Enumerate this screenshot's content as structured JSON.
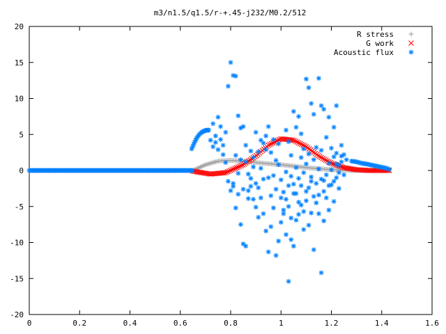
{
  "chart_data": {
    "type": "scatter",
    "title": "m3/n1.5/q1.5/r-+.45-j232/M0.2/512",
    "xlabel": "",
    "ylabel": "",
    "xlim": [
      0,
      1.6
    ],
    "ylim": [
      -20,
      20
    ],
    "x_ticks": [
      "0",
      "0.2",
      "0.4",
      "0.6",
      "0.8",
      "1",
      "1.2",
      "1.4",
      "1.6"
    ],
    "y_ticks": [
      "20",
      "15",
      "10",
      "5",
      "0",
      "-5",
      "-10",
      "-15",
      "-20"
    ],
    "grid": false,
    "legend_position": "top-right",
    "series": [
      {
        "name": "R stress",
        "marker": "plus",
        "color": "#a0a0a0",
        "curve": {
          "x": [
            0.65,
            0.7,
            0.75,
            0.8,
            0.85,
            0.9,
            1.0,
            1.1,
            1.2,
            1.3,
            1.35,
            1.43
          ],
          "y": [
            0.0,
            0.8,
            1.3,
            1.4,
            1.3,
            1.1,
            0.8,
            0.4,
            0.1,
            0.0,
            0.0,
            0.0
          ]
        }
      },
      {
        "name": "G work",
        "marker": "cross",
        "color": "#ff0000",
        "curve": {
          "x": [
            0.65,
            0.72,
            0.78,
            0.85,
            0.9,
            0.95,
            1.0,
            1.05,
            1.1,
            1.15,
            1.2,
            1.25,
            1.3,
            1.35,
            1.43
          ],
          "y": [
            -0.1,
            -0.5,
            -0.3,
            0.8,
            2.0,
            3.5,
            4.4,
            4.2,
            3.3,
            2.0,
            1.0,
            0.4,
            0.1,
            0.0,
            0.0
          ]
        }
      },
      {
        "name": "Acoustic flux",
        "marker": "star",
        "color": "#0080ff",
        "baseline": {
          "x": [
            0.0,
            0.65
          ],
          "y": 0
        },
        "curve": {
          "x": [
            0.645,
            0.655,
            0.665,
            0.675,
            0.685,
            0.695,
            0.705,
            0.715
          ],
          "y": [
            3.0,
            3.8,
            4.5,
            5.0,
            5.3,
            5.5,
            5.6,
            5.6
          ]
        },
        "tail": {
          "x": [
            1.28,
            1.3,
            1.32,
            1.34,
            1.36,
            1.38,
            1.4,
            1.42,
            1.43
          ],
          "y": [
            1.3,
            1.2,
            1.0,
            0.9,
            0.75,
            0.6,
            0.45,
            0.3,
            0.15
          ]
        },
        "points": [
          [
            0.72,
            4.2
          ],
          [
            0.73,
            6.5
          ],
          [
            0.74,
            4.8
          ],
          [
            0.75,
            7.4
          ],
          [
            0.76,
            6.1
          ],
          [
            0.77,
            3.5
          ],
          [
            0.78,
            5.3
          ],
          [
            0.79,
            11.7
          ],
          [
            0.8,
            15.0
          ],
          [
            0.81,
            13.2
          ],
          [
            0.82,
            13.1
          ],
          [
            0.83,
            7.6
          ],
          [
            0.84,
            5.9
          ],
          [
            0.85,
            6.1
          ],
          [
            0.73,
            3.3
          ],
          [
            0.74,
            3.9
          ],
          [
            0.75,
            2.9
          ],
          [
            0.76,
            4.3
          ],
          [
            0.77,
            2.2
          ],
          [
            0.78,
            1.1
          ],
          [
            0.79,
            -1.5
          ],
          [
            0.8,
            -2.8
          ],
          [
            0.81,
            -2.2
          ],
          [
            0.82,
            -5.2
          ],
          [
            0.83,
            -3.3
          ],
          [
            0.84,
            -7.5
          ],
          [
            0.85,
            -10.2
          ],
          [
            0.86,
            -10.5
          ],
          [
            0.87,
            -2.8
          ],
          [
            0.88,
            -1.1
          ],
          [
            0.89,
            0.5
          ],
          [
            0.9,
            -5.1
          ],
          [
            0.91,
            -2.4
          ],
          [
            0.92,
            -3.8
          ],
          [
            0.93,
            -6.0
          ],
          [
            0.94,
            -8.4
          ],
          [
            0.95,
            -11.3
          ],
          [
            0.96,
            -7.8
          ],
          [
            0.97,
            -5.2
          ],
          [
            0.98,
            -11.8
          ],
          [
            0.99,
            -9.8
          ],
          [
            1.0,
            -7.2
          ],
          [
            1.01,
            -5.5
          ],
          [
            1.02,
            -4.0
          ],
          [
            1.03,
            -15.4
          ],
          [
            1.04,
            -6.6
          ],
          [
            1.05,
            -10.5
          ],
          [
            1.06,
            -3.2
          ],
          [
            1.07,
            -6.1
          ],
          [
            1.08,
            -4.8
          ],
          [
            1.09,
            -8.2
          ],
          [
            1.1,
            -2.9
          ],
          [
            1.11,
            -7.6
          ],
          [
            1.12,
            -1.5
          ],
          [
            1.13,
            -11.0
          ],
          [
            1.14,
            -4.5
          ],
          [
            1.15,
            -6.0
          ],
          [
            1.16,
            -14.2
          ],
          [
            1.17,
            -7.0
          ],
          [
            1.18,
            -3.8
          ],
          [
            1.19,
            -5.5
          ],
          [
            1.2,
            -2.0
          ],
          [
            1.21,
            -4.3
          ],
          [
            1.22,
            -1.0
          ],
          [
            1.23,
            -2.5
          ],
          [
            1.1,
            12.7
          ],
          [
            1.11,
            11.5
          ],
          [
            1.12,
            9.3
          ],
          [
            1.13,
            7.8
          ],
          [
            1.15,
            12.8
          ],
          [
            1.16,
            9.0
          ],
          [
            1.17,
            8.5
          ],
          [
            1.19,
            7.4
          ],
          [
            1.21,
            6.0
          ],
          [
            1.22,
            9.0
          ],
          [
            1.24,
            3.5
          ],
          [
            1.25,
            2.2
          ],
          [
            1.26,
            1.5
          ],
          [
            1.05,
            8.2
          ],
          [
            1.06,
            6.0
          ],
          [
            1.07,
            7.5
          ],
          [
            1.08,
            5.1
          ],
          [
            1.09,
            3.0
          ],
          [
            1.02,
            5.6
          ],
          [
            1.03,
            4.0
          ],
          [
            1.04,
            2.1
          ],
          [
            0.92,
            4.2
          ],
          [
            0.93,
            3.8
          ],
          [
            0.94,
            2.9
          ],
          [
            0.86,
            1.2
          ],
          [
            0.87,
            -0.5
          ],
          [
            0.88,
            -2.2
          ],
          [
            0.89,
            -4.0
          ],
          [
            0.9,
            -1.8
          ],
          [
            0.91,
            -6.5
          ],
          [
            0.95,
            -1.0
          ],
          [
            0.96,
            -3.5
          ],
          [
            0.97,
            -0.7
          ],
          [
            0.98,
            -2.6
          ],
          [
            0.99,
            0.8
          ],
          [
            1.0,
            -1.3
          ],
          [
            1.01,
            -3.0
          ],
          [
            1.02,
            -0.2
          ],
          [
            1.03,
            -2.1
          ],
          [
            1.04,
            -0.8
          ],
          [
            1.05,
            -1.9
          ],
          [
            1.06,
            0.4
          ],
          [
            1.07,
            -1.1
          ],
          [
            1.08,
            1.8
          ],
          [
            1.09,
            -0.3
          ],
          [
            1.1,
            0.9
          ],
          [
            1.11,
            2.3
          ],
          [
            1.12,
            -0.9
          ],
          [
            1.13,
            1.5
          ],
          [
            1.14,
            3.2
          ],
          [
            1.15,
            0.2
          ],
          [
            1.16,
            2.8
          ],
          [
            1.17,
            -1.4
          ],
          [
            1.18,
            4.6
          ],
          [
            1.19,
            1.0
          ],
          [
            1.2,
            3.1
          ],
          [
            1.21,
            1.9
          ],
          [
            1.22,
            2.4
          ],
          [
            1.23,
            0.7
          ],
          [
            1.24,
            2.0
          ],
          [
            1.25,
            -0.6
          ],
          [
            0.81,
            -1.8
          ],
          [
            0.82,
            2.1
          ],
          [
            0.83,
            -0.4
          ],
          [
            0.84,
            1.5
          ],
          [
            0.85,
            -2.6
          ],
          [
            0.86,
            3.5
          ],
          [
            0.87,
            -3.9
          ],
          [
            0.88,
            2.7
          ],
          [
            0.89,
            1.8
          ],
          [
            0.9,
            5.3
          ],
          [
            0.91,
            2.6
          ],
          [
            0.92,
            0.3
          ],
          [
            0.93,
            -1.2
          ],
          [
            0.94,
            4.8
          ],
          [
            0.95,
            6.1
          ],
          [
            0.96,
            2.5
          ],
          [
            0.97,
            4.3
          ],
          [
            0.98,
            1.4
          ],
          [
            0.99,
            3.7
          ],
          [
            1.0,
            -3.8
          ],
          [
            1.01,
            -6.0
          ],
          [
            1.02,
            -8.9
          ],
          [
            1.03,
            -5.0
          ],
          [
            1.04,
            -9.6
          ],
          [
            1.05,
            -3.2
          ],
          [
            1.06,
            -6.9
          ],
          [
            1.07,
            -4.4
          ],
          [
            1.08,
            -2.1
          ],
          [
            1.09,
            -5.7
          ],
          [
            1.1,
            -4.2
          ],
          [
            1.11,
            -2.4
          ],
          [
            1.12,
            -5.9
          ],
          [
            1.13,
            -3.6
          ],
          [
            1.14,
            -1.8
          ],
          [
            1.15,
            -3.4
          ],
          [
            1.16,
            -1.2
          ],
          [
            1.17,
            -2.9
          ],
          [
            1.18,
            -0.6
          ],
          [
            1.19,
            -2.1
          ],
          [
            1.2,
            0.1
          ],
          [
            1.21,
            -1.5
          ],
          [
            1.22,
            0.9
          ],
          [
            1.23,
            -0.3
          ],
          [
            1.24,
            1.2
          ]
        ]
      }
    ]
  }
}
